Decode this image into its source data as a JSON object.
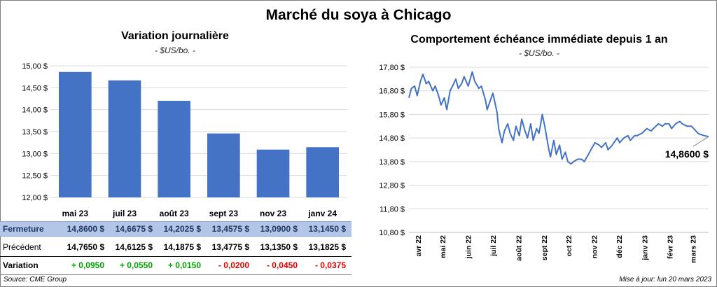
{
  "title": "Marché du soya à Chicago",
  "left_chart": {
    "title": "Variation  journalière",
    "subtitle": "- $US/bo. -"
  },
  "right_chart": {
    "title": "Comportement  échéance immédiate depuis 1 an",
    "subtitle": "- $US/bo. -",
    "last_value_label": "14,8600 $"
  },
  "table": {
    "rows": [
      {
        "label": "Fermeture",
        "values": [
          "14,8600  $",
          "14,6675  $",
          "14,2025  $",
          "13,4575  $",
          "13,0900  $",
          "13,1450  $"
        ]
      },
      {
        "label": "Précédent",
        "values": [
          "14,7650  $",
          "14,6125  $",
          "14,1875  $",
          "13,4775  $",
          "13,1350  $",
          "13,1825  $"
        ]
      },
      {
        "label": "Variation",
        "values": [
          "+ 0,0950",
          "+ 0,0550",
          "+ 0,0150",
          "- 0,0200",
          "- 0,0450",
          "- 0,0375"
        ]
      }
    ]
  },
  "footer": {
    "source": "Source: CME Group",
    "updated": "Mise à jour: lun 20 mars 2023"
  },
  "colors": {
    "bar": "#4472c4",
    "line": "#4472c4",
    "positive": "#00a000",
    "negative": "#e00000",
    "closing_row_bg": "#b4c6e7"
  },
  "chart_data": [
    {
      "type": "bar",
      "categories": [
        "mai 23",
        "juil 23",
        "août 23",
        "sept 23",
        "nov 23",
        "janv 24"
      ],
      "values": [
        14.86,
        14.6675,
        14.2025,
        13.4575,
        13.09,
        13.145
      ],
      "ylim": [
        12.0,
        15.0
      ],
      "yticks": [
        12.0,
        12.5,
        13.0,
        13.5,
        14.0,
        14.5,
        15.0
      ],
      "ytick_labels": [
        "12,00 $",
        "12,50 $",
        "13,00 $",
        "13,50 $",
        "14,00 $",
        "14,50 $",
        "15,00 $"
      ],
      "grid": true
    },
    {
      "type": "line",
      "xticks": [
        "avr 22",
        "mai 22",
        "juin 22",
        "juil 22",
        "août 22",
        "sept 22",
        "oct 22",
        "nov 22",
        "déc 22",
        "janv 23",
        "févr 23",
        "mars 23"
      ],
      "x_range": [
        "2022-03-21",
        "2023-03-20"
      ],
      "ylim": [
        10.8,
        17.8
      ],
      "yticks": [
        10.8,
        11.8,
        12.8,
        13.8,
        14.8,
        15.8,
        16.8,
        17.8
      ],
      "ytick_labels": [
        "10,80 $",
        "11,80 $",
        "12,80 $",
        "13,80 $",
        "14,80 $",
        "15,80 $",
        "16,80 $",
        "17,80 $"
      ],
      "grid": true,
      "series": [
        {
          "x": [
            "2022-03-21",
            "2022-03-24",
            "2022-03-28",
            "2022-03-31",
            "2022-04-04",
            "2022-04-07",
            "2022-04-11",
            "2022-04-14",
            "2022-04-19",
            "2022-04-22",
            "2022-04-26",
            "2022-04-29",
            "2022-05-03",
            "2022-05-06",
            "2022-05-10",
            "2022-05-13",
            "2022-05-17",
            "2022-05-20",
            "2022-05-24",
            "2022-05-27",
            "2022-06-01",
            "2022-06-06",
            "2022-06-09",
            "2022-06-14",
            "2022-06-17",
            "2022-06-22",
            "2022-06-24",
            "2022-06-28",
            "2022-07-01",
            "2022-07-06",
            "2022-07-08",
            "2022-07-12",
            "2022-07-15",
            "2022-07-19",
            "2022-07-22",
            "2022-07-26",
            "2022-07-29",
            "2022-08-02",
            "2022-08-05",
            "2022-08-09",
            "2022-08-12",
            "2022-08-16",
            "2022-08-19",
            "2022-08-23",
            "2022-08-26",
            "2022-08-30",
            "2022-09-02",
            "2022-09-07",
            "2022-09-09",
            "2022-09-13",
            "2022-09-16",
            "2022-09-20",
            "2022-09-23",
            "2022-09-27",
            "2022-09-30",
            "2022-10-04",
            "2022-10-07",
            "2022-10-12",
            "2022-10-17",
            "2022-10-20",
            "2022-10-25",
            "2022-10-28",
            "2022-11-02",
            "2022-11-07",
            "2022-11-10",
            "2022-11-15",
            "2022-11-18",
            "2022-11-23",
            "2022-11-29",
            "2022-12-02",
            "2022-12-07",
            "2022-12-12",
            "2022-12-15",
            "2022-12-20",
            "2022-12-23",
            "2022-12-29",
            "2023-01-04",
            "2023-01-09",
            "2023-01-12",
            "2023-01-18",
            "2023-01-23",
            "2023-01-26",
            "2023-01-31",
            "2023-02-03",
            "2023-02-08",
            "2023-02-13",
            "2023-02-16",
            "2023-02-22",
            "2023-02-27",
            "2023-03-02",
            "2023-03-07",
            "2023-03-10",
            "2023-03-15",
            "2023-03-20"
          ],
          "y": [
            16.5,
            16.9,
            17.0,
            16.6,
            17.2,
            17.5,
            17.1,
            17.2,
            16.8,
            17.0,
            16.6,
            16.2,
            16.5,
            16.0,
            16.8,
            17.0,
            17.3,
            16.9,
            17.1,
            17.4,
            17.0,
            17.6,
            17.2,
            16.9,
            17.0,
            16.4,
            16.0,
            16.4,
            16.7,
            15.9,
            15.2,
            14.6,
            15.1,
            15.4,
            15.0,
            14.7,
            15.3,
            14.9,
            15.6,
            15.1,
            14.8,
            15.4,
            14.7,
            15.2,
            15.0,
            15.8,
            15.3,
            14.3,
            14.0,
            14.7,
            14.1,
            14.5,
            13.9,
            14.2,
            13.8,
            13.7,
            13.8,
            13.9,
            13.9,
            13.8,
            14.1,
            14.3,
            14.6,
            14.5,
            14.4,
            14.6,
            14.3,
            14.5,
            14.8,
            14.6,
            14.8,
            14.9,
            14.7,
            14.9,
            14.9,
            15.0,
            15.2,
            15.1,
            15.2,
            15.4,
            15.3,
            15.4,
            15.4,
            15.2,
            15.4,
            15.5,
            15.4,
            15.3,
            15.3,
            15.2,
            15.0,
            14.95,
            14.9,
            14.86
          ]
        }
      ],
      "annotation": "14,8600 $"
    }
  ]
}
